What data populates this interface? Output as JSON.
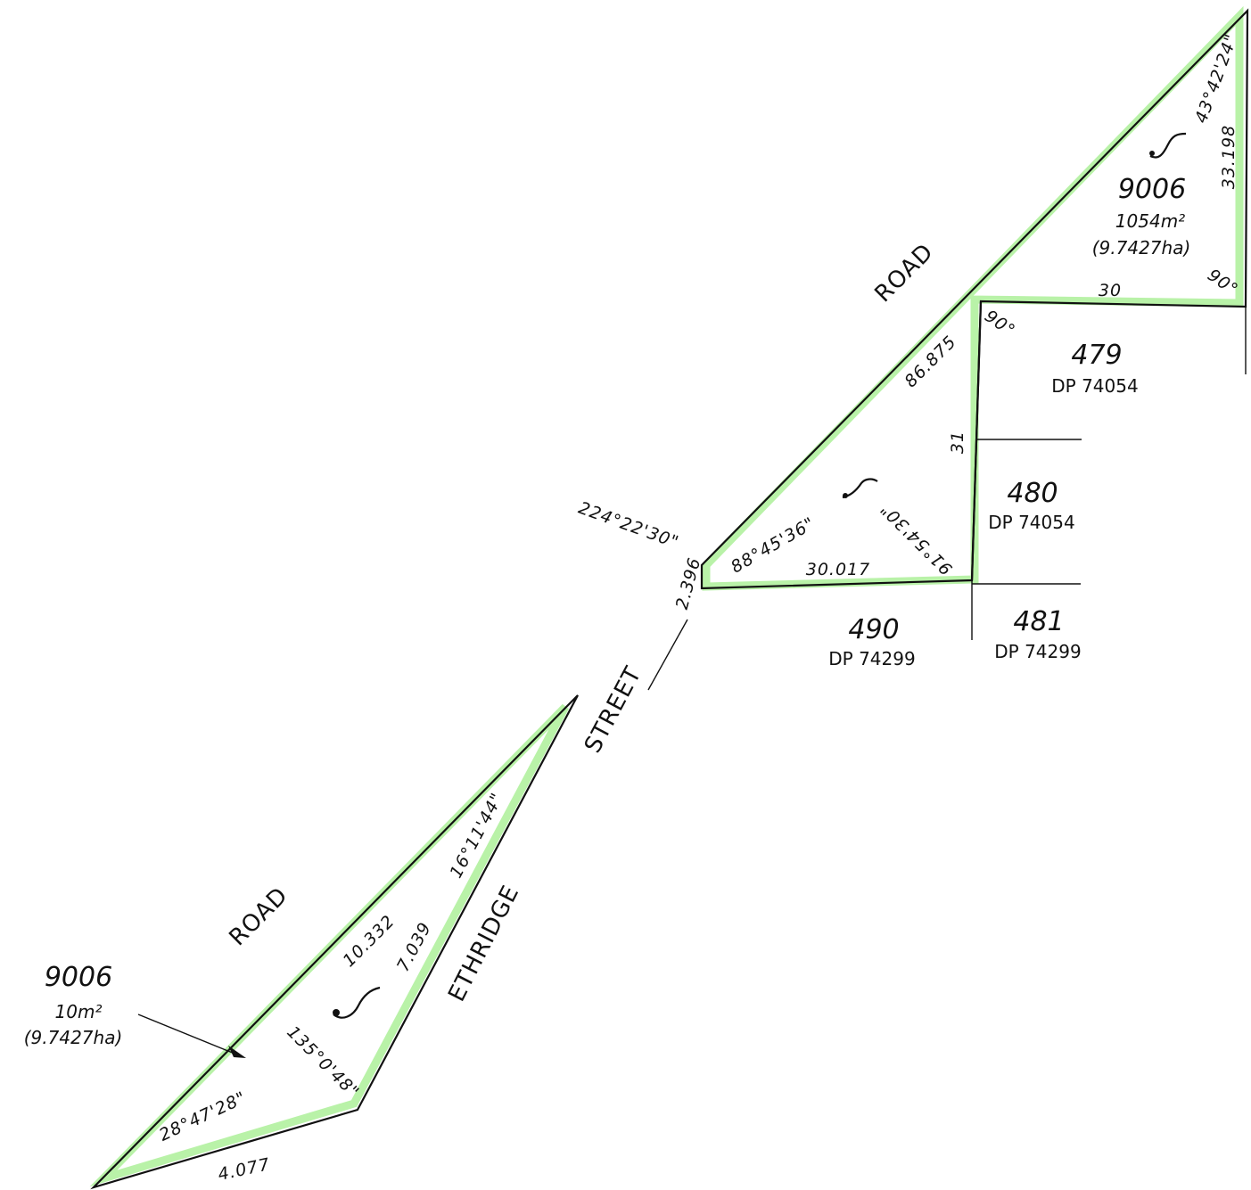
{
  "lots": [
    {
      "lot_number": "9006",
      "area": "1054m²",
      "area_ha": "(9.7427ha)"
    },
    {
      "lot_number": "9006",
      "area": "10m²",
      "area_ha": "(9.7427ha)"
    },
    {
      "lot_number": "479",
      "dp": "DP 74054"
    },
    {
      "lot_number": "480",
      "dp": "DP 74054"
    },
    {
      "lot_number": "490",
      "dp": "DP 74299"
    },
    {
      "lot_number": "481",
      "dp": "DP 74299"
    }
  ],
  "roads": {
    "road_upper": "ROAD",
    "road_lower": "ROAD",
    "street": "STREET",
    "ethridge": "ETHRIDGE"
  },
  "dimensions": {
    "top_angle": "43°42'24\"",
    "right_side": "33.198",
    "top_right_angle": "90°",
    "top_bottom": "30",
    "corner_angle": "90°",
    "hypotenuse": "86.875",
    "short_side": "31",
    "angle_right_mid": "91°54'30\"",
    "angle_left_mid": "88°45'36\"",
    "bottom_mid": "30.017",
    "bearing": "224°22'30\"",
    "street_len": "2.396",
    "lower_angle_top": "16°11'44\"",
    "lower_hyp": "10.332",
    "lower_inner": "7.039",
    "lower_angle_mid": "135°0'48\"",
    "lower_angle_left": "28°47'28\"",
    "lower_bottom": "4.077"
  }
}
